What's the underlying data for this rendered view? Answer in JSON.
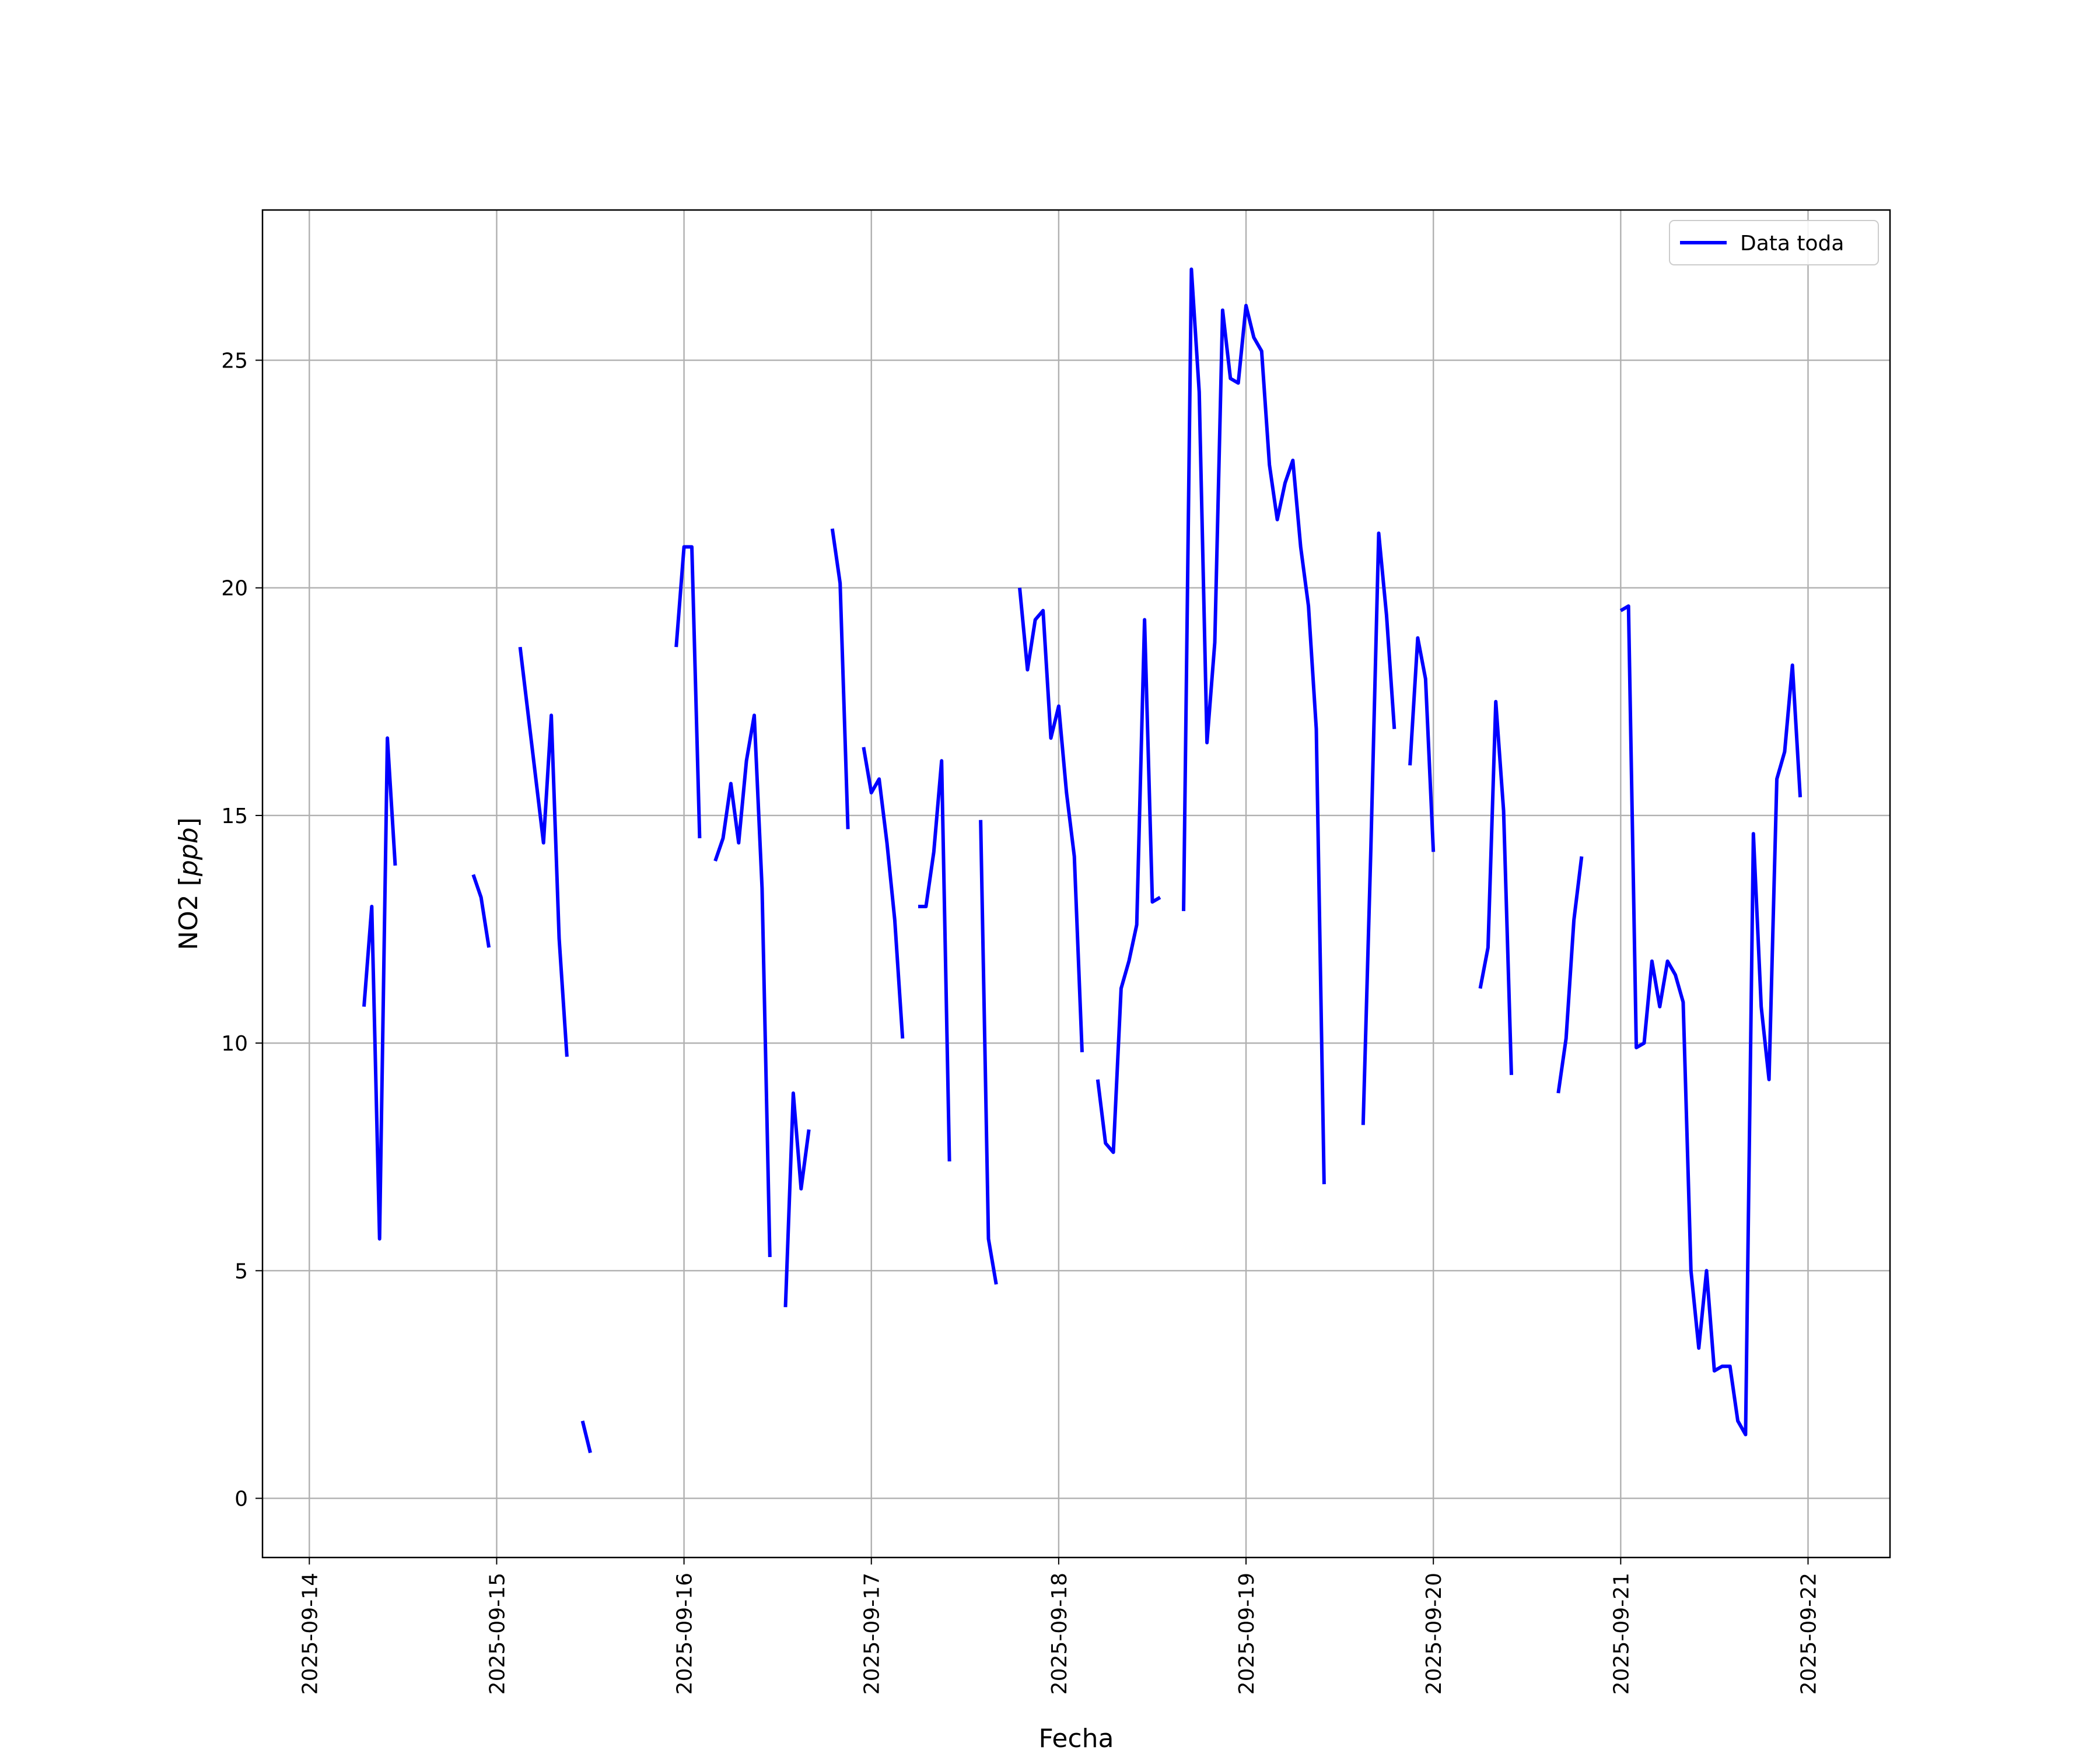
{
  "chart_data": {
    "type": "line",
    "title": "",
    "xlabel": "Fecha",
    "ylabel": "NO2 [ppb]",
    "ylabel_main": "NO2 [",
    "ylabel_unit": "ppb",
    "ylabel_close": "]",
    "xlim": [
      "2025-09-13T18:00",
      "2025-09-22T10:30"
    ],
    "ylim": [
      -1.3,
      28.3
    ],
    "yticks": [
      "0",
      "5",
      "10",
      "15",
      "20",
      "25"
    ],
    "xticks": [
      "2025-09-14",
      "2025-09-15",
      "2025-09-16",
      "2025-09-17",
      "2025-09-18",
      "2025-09-19",
      "2025-09-20",
      "2025-09-21",
      "2025-09-22"
    ],
    "grid": true,
    "legend": {
      "placement": "top-right",
      "entries": [
        "Data toda"
      ]
    },
    "series": [
      {
        "name": "Data toda",
        "color": "#0000ff",
        "segments": [
          [
            [
              "2025-09-14T07:00",
              10.8
            ],
            [
              "2025-09-14T08:00",
              13.0
            ],
            [
              "2025-09-14T09:00",
              5.7
            ],
            [
              "2025-09-14T10:00",
              16.7
            ],
            [
              "2025-09-14T11:00",
              13.9
            ]
          ],
          [
            [
              "2025-09-14T21:00",
              13.7
            ],
            [
              "2025-09-14T22:00",
              13.2
            ],
            [
              "2025-09-14T23:00",
              12.1
            ]
          ],
          [
            [
              "2025-09-15T03:00",
              18.7
            ],
            [
              "2025-09-15T06:00",
              14.4
            ],
            [
              "2025-09-15T07:00",
              17.2
            ],
            [
              "2025-09-15T08:00",
              12.3
            ],
            [
              "2025-09-15T09:00",
              9.7
            ]
          ],
          [
            [
              "2025-09-15T11:00",
              1.7
            ],
            [
              "2025-09-15T12:00",
              1.0
            ]
          ],
          [
            [
              "2025-09-15T23:00",
              18.7
            ],
            [
              "2025-09-16T00:00",
              20.9
            ],
            [
              "2025-09-16T01:00",
              20.9
            ],
            [
              "2025-09-16T02:00",
              14.5
            ]
          ],
          [
            [
              "2025-09-16T04:00",
              14.0
            ],
            [
              "2025-09-16T05:00",
              14.5
            ],
            [
              "2025-09-16T06:00",
              15.7
            ],
            [
              "2025-09-16T07:00",
              14.4
            ],
            [
              "2025-09-16T08:00",
              16.2
            ],
            [
              "2025-09-16T09:00",
              17.2
            ],
            [
              "2025-09-16T10:00",
              13.4
            ],
            [
              "2025-09-16T11:00",
              5.3
            ]
          ],
          [
            [
              "2025-09-16T13:00",
              4.2
            ],
            [
              "2025-09-16T14:00",
              8.9
            ],
            [
              "2025-09-16T15:00",
              6.8
            ],
            [
              "2025-09-16T16:00",
              8.1
            ]
          ],
          [
            [
              "2025-09-16T19:00",
              21.3
            ],
            [
              "2025-09-16T20:00",
              20.1
            ],
            [
              "2025-09-16T21:00",
              14.7
            ]
          ],
          [
            [
              "2025-09-16T23:00",
              16.5
            ],
            [
              "2025-09-17T00:00",
              15.5
            ],
            [
              "2025-09-17T01:00",
              15.8
            ],
            [
              "2025-09-17T02:00",
              14.4
            ],
            [
              "2025-09-17T03:00",
              12.7
            ],
            [
              "2025-09-17T04:00",
              10.1
            ]
          ],
          [
            [
              "2025-09-17T06:00",
              13.0
            ],
            [
              "2025-09-17T07:00",
              13.0
            ],
            [
              "2025-09-17T08:00",
              14.2
            ],
            [
              "2025-09-17T09:00",
              16.2
            ],
            [
              "2025-09-17T10:00",
              7.4
            ]
          ],
          [
            [
              "2025-09-17T14:00",
              14.9
            ],
            [
              "2025-09-17T15:00",
              5.7
            ],
            [
              "2025-09-17T16:00",
              4.7
            ]
          ],
          [
            [
              "2025-09-17T19:00",
              20.0
            ],
            [
              "2025-09-17T20:00",
              18.2
            ],
            [
              "2025-09-17T21:00",
              19.3
            ],
            [
              "2025-09-17T22:00",
              19.5
            ],
            [
              "2025-09-17T23:00",
              16.7
            ],
            [
              "2025-09-18T00:00",
              17.4
            ],
            [
              "2025-09-18T01:00",
              15.5
            ],
            [
              "2025-09-18T02:00",
              14.1
            ],
            [
              "2025-09-18T03:00",
              9.8
            ]
          ],
          [
            [
              "2025-09-18T05:00",
              9.2
            ],
            [
              "2025-09-18T06:00",
              7.8
            ],
            [
              "2025-09-18T07:00",
              7.6
            ],
            [
              "2025-09-18T08:00",
              11.2
            ],
            [
              "2025-09-18T09:00",
              11.8
            ],
            [
              "2025-09-18T10:00",
              12.6
            ],
            [
              "2025-09-18T11:00",
              19.3
            ],
            [
              "2025-09-18T12:00",
              13.1
            ],
            [
              "2025-09-18T13:00",
              13.2
            ]
          ],
          [
            [
              "2025-09-18T16:00",
              12.9
            ],
            [
              "2025-09-18T17:00",
              27.0
            ],
            [
              "2025-09-18T18:00",
              24.3
            ],
            [
              "2025-09-18T19:00",
              16.6
            ],
            [
              "2025-09-18T20:00",
              18.8
            ],
            [
              "2025-09-18T21:00",
              26.1
            ],
            [
              "2025-09-18T22:00",
              24.6
            ],
            [
              "2025-09-18T23:00",
              24.5
            ],
            [
              "2025-09-19T00:00",
              26.2
            ],
            [
              "2025-09-19T01:00",
              25.5
            ],
            [
              "2025-09-19T02:00",
              25.2
            ],
            [
              "2025-09-19T03:00",
              22.7
            ],
            [
              "2025-09-19T04:00",
              21.5
            ],
            [
              "2025-09-19T05:00",
              22.3
            ],
            [
              "2025-09-19T06:00",
              22.8
            ],
            [
              "2025-09-19T07:00",
              20.9
            ],
            [
              "2025-09-19T08:00",
              19.6
            ],
            [
              "2025-09-19T09:00",
              16.9
            ],
            [
              "2025-09-19T10:00",
              6.9
            ]
          ],
          [
            [
              "2025-09-19T15:00",
              8.2
            ],
            [
              "2025-09-19T16:00",
              14.3
            ],
            [
              "2025-09-19T17:00",
              21.2
            ],
            [
              "2025-09-19T18:00",
              19.4
            ],
            [
              "2025-09-19T19:00",
              16.9
            ]
          ],
          [
            [
              "2025-09-19T21:00",
              16.1
            ],
            [
              "2025-09-19T22:00",
              18.9
            ],
            [
              "2025-09-19T23:00",
              18.0
            ],
            [
              "2025-09-20T00:00",
              14.2
            ]
          ],
          [
            [
              "2025-09-20T06:00",
              11.2
            ],
            [
              "2025-09-20T07:00",
              12.1
            ],
            [
              "2025-09-20T08:00",
              17.5
            ],
            [
              "2025-09-20T09:00",
              15.1
            ],
            [
              "2025-09-20T10:00",
              9.3
            ]
          ],
          [
            [
              "2025-09-20T16:00",
              8.9
            ],
            [
              "2025-09-20T17:00",
              10.1
            ],
            [
              "2025-09-20T18:00",
              12.7
            ],
            [
              "2025-09-20T19:00",
              14.1
            ]
          ],
          [
            [
              "2025-09-21T00:00",
              19.5
            ],
            [
              "2025-09-21T01:00",
              19.6
            ],
            [
              "2025-09-21T02:00",
              9.9
            ],
            [
              "2025-09-21T03:00",
              10.0
            ],
            [
              "2025-09-21T04:00",
              11.8
            ],
            [
              "2025-09-21T05:00",
              10.8
            ],
            [
              "2025-09-21T06:00",
              11.8
            ],
            [
              "2025-09-21T07:00",
              11.5
            ],
            [
              "2025-09-21T08:00",
              10.9
            ],
            [
              "2025-09-21T09:00",
              5.0
            ],
            [
              "2025-09-21T10:00",
              3.3
            ],
            [
              "2025-09-21T11:00",
              5.0
            ],
            [
              "2025-09-21T12:00",
              2.8
            ],
            [
              "2025-09-21T13:00",
              2.9
            ],
            [
              "2025-09-21T14:00",
              2.9
            ],
            [
              "2025-09-21T15:00",
              1.7
            ],
            [
              "2025-09-21T16:00",
              1.4
            ],
            [
              "2025-09-21T17:00",
              14.6
            ],
            [
              "2025-09-21T18:00",
              10.8
            ],
            [
              "2025-09-21T19:00",
              9.2
            ],
            [
              "2025-09-21T20:00",
              15.8
            ],
            [
              "2025-09-21T21:00",
              16.4
            ],
            [
              "2025-09-21T22:00",
              18.3
            ],
            [
              "2025-09-21T23:00",
              15.4
            ]
          ]
        ]
      }
    ]
  }
}
